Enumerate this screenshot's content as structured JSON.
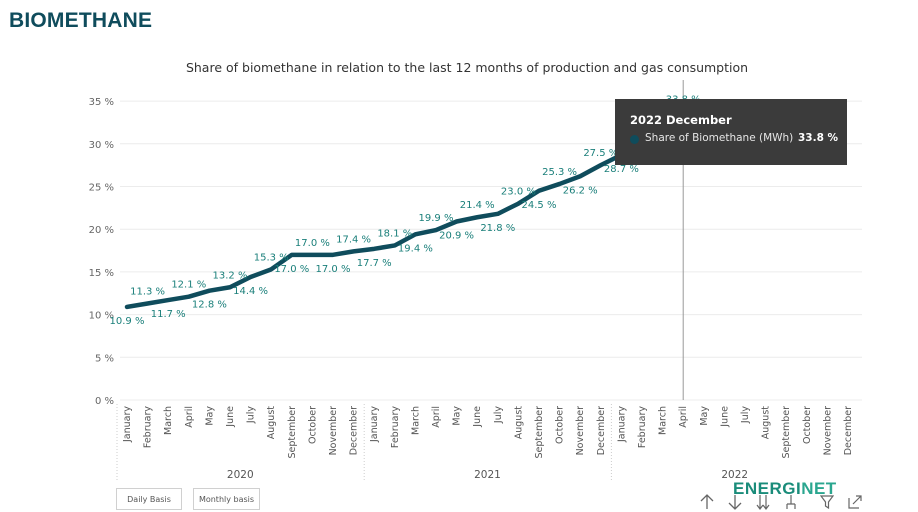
{
  "page": {
    "title": "BIOMETHANE"
  },
  "chart_data": {
    "type": "line",
    "title": "Share of biomethane in relation to the last 12 months of production and gas consumption",
    "y_ticks": [
      "0 %",
      "5 %",
      "10 %",
      "15 %",
      "20 %",
      "25 %",
      "30 %",
      "35 %"
    ],
    "ylim": [
      0,
      35
    ],
    "grid": true,
    "x_year_groups": [
      {
        "year": "2020",
        "months": [
          "January",
          "February",
          "March",
          "April",
          "May",
          "June",
          "July",
          "August",
          "September",
          "October",
          "November",
          "December"
        ]
      },
      {
        "year": "2021",
        "months": [
          "January",
          "February",
          "March",
          "April",
          "May",
          "June",
          "July",
          "August",
          "September",
          "October",
          "November",
          "December"
        ]
      },
      {
        "year": "2022",
        "months": [
          "January",
          "February",
          "March",
          "April",
          "May",
          "June",
          "July",
          "August",
          "September",
          "October",
          "November",
          "December"
        ]
      }
    ],
    "series": [
      {
        "name": "Share of Biomethane (MWh)",
        "color": "#0f4c5c",
        "values": [
          10.9,
          11.3,
          11.7,
          12.1,
          12.8,
          13.2,
          14.4,
          15.3,
          17.0,
          17.0,
          17.0,
          17.4,
          17.7,
          18.1,
          19.4,
          19.9,
          20.9,
          21.4,
          21.8,
          23.0,
          24.5,
          25.3,
          26.2,
          27.5,
          28.7,
          30.0,
          32.0,
          33.8
        ],
        "labels": [
          "10.9 %",
          "11.3 %",
          "11.7 %",
          "12.1 %",
          "12.8 %",
          "13.2 %",
          "14.4 %",
          "15.3 %",
          "17.0 %",
          "17.0 %",
          "17.0 %",
          "17.4 %",
          "17.7 %",
          "18.1 %",
          "19.4 %",
          "19.9 %",
          "20.9 %",
          "21.4 %",
          "21.8 %",
          "23.0 %",
          "24.5 %",
          "25.3 %",
          "26.2 %",
          "27.5 %",
          "28.7 %",
          "",
          "",
          "33.8 %"
        ]
      }
    ],
    "label_color": "#1a7f7a"
  },
  "tooltip": {
    "title": "2022 December",
    "series_label": "Share of Biomethane (MWh)",
    "value": "33.8 %"
  },
  "buttons": {
    "daily": "Daily Basis",
    "monthly": "Monthly basis"
  },
  "brand": {
    "part1": "ENERGI",
    "part2": "NET"
  },
  "icons": [
    "arrow-up-icon",
    "arrow-down-icon",
    "double-arrow-down-icon",
    "expand-hierarchy-icon",
    "filter-icon",
    "focus-mode-icon"
  ]
}
